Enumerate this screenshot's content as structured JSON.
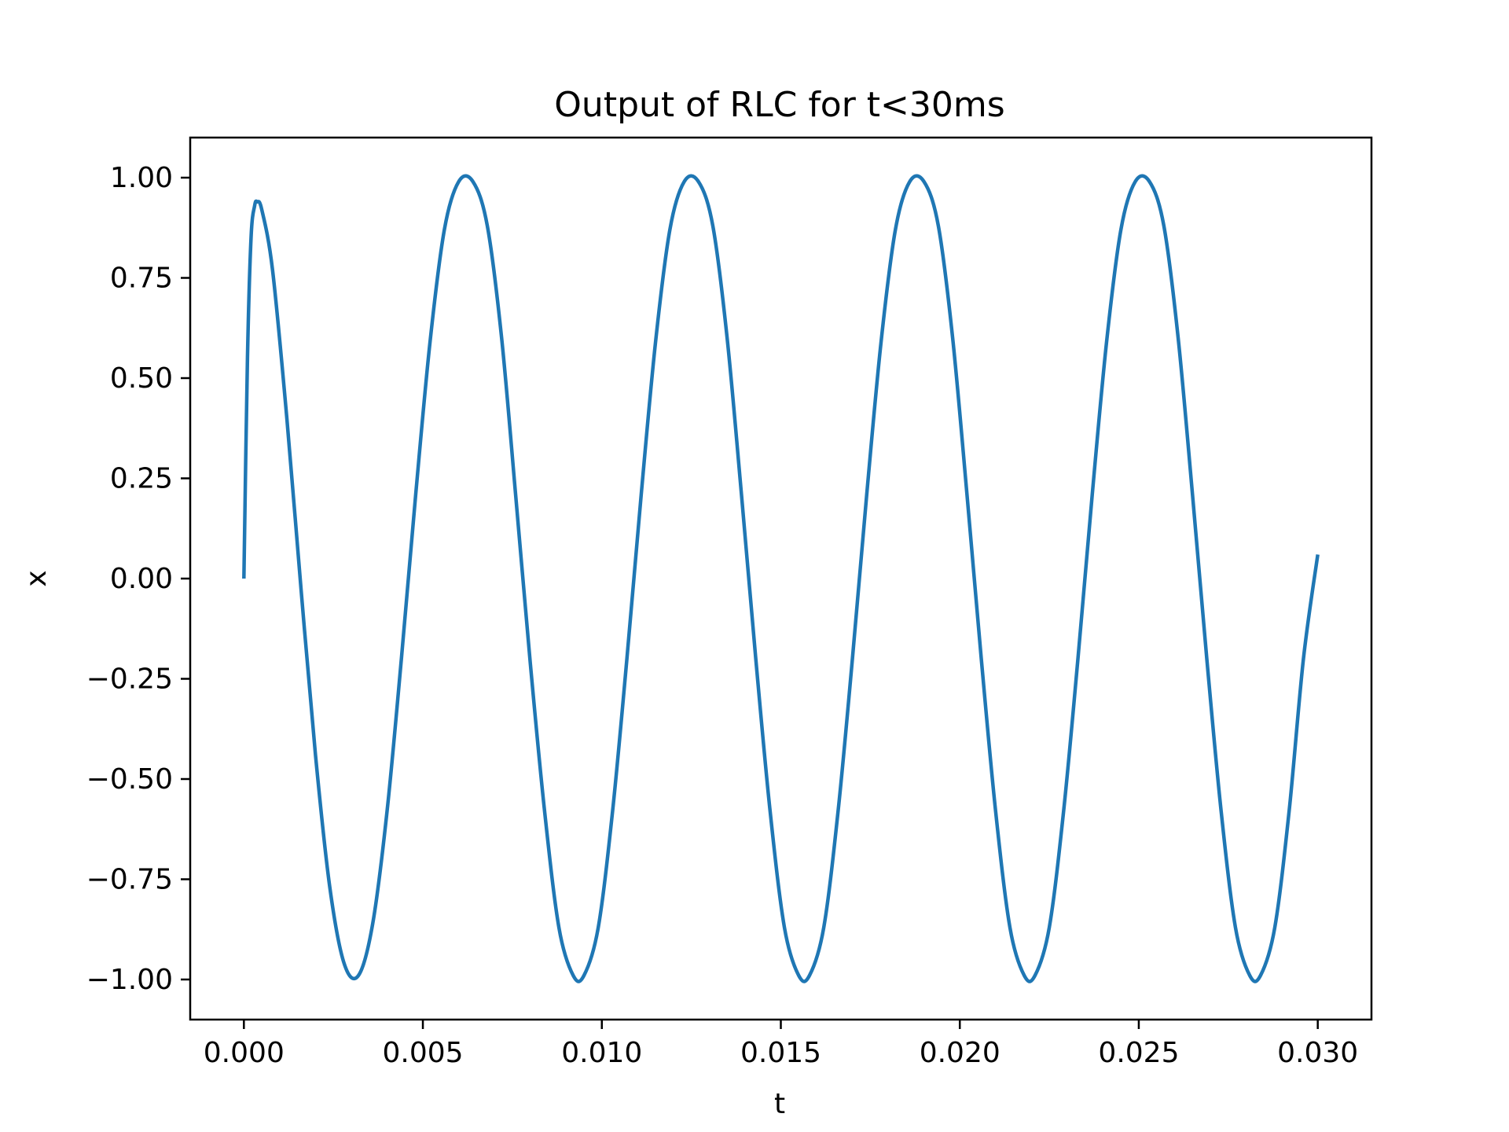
{
  "chart_data": {
    "type": "line",
    "title": "Output of RLC for t<30ms",
    "xlabel": "t",
    "ylabel": "x",
    "xlim": [
      -0.0015,
      0.0315
    ],
    "ylim": [
      -1.1,
      1.1
    ],
    "xticks": [
      0.0,
      0.005,
      0.01,
      0.015,
      0.02,
      0.025,
      0.03
    ],
    "xtick_labels": [
      "0.000",
      "0.005",
      "0.010",
      "0.015",
      "0.020",
      "0.025",
      "0.030"
    ],
    "yticks": [
      1.0,
      0.75,
      0.5,
      0.25,
      0.0,
      -0.25,
      -0.5,
      -0.75,
      -1.0
    ],
    "ytick_labels": [
      "1.00",
      "0.75",
      "0.50",
      "0.25",
      "0.00",
      "−0.25",
      "−0.50",
      "−0.75",
      "−1.00"
    ],
    "grid": false,
    "color": "#1f77b4",
    "series": [
      {
        "x": [
          0.0,
          0.0001,
          0.0002,
          0.0003,
          0.00037,
          0.0005,
          0.0008,
          0.0012,
          0.0016,
          0.002,
          0.0024,
          0.0028,
          0.0032,
          0.0036,
          0.004,
          0.0044,
          0.0048,
          0.0052,
          0.0056,
          0.006,
          0.0064,
          0.0068,
          0.0072,
          0.0076,
          0.008,
          0.0084,
          0.0088,
          0.0092,
          0.0095,
          0.0099,
          0.0103,
          0.0107,
          0.0111,
          0.0115,
          0.0119,
          0.0123,
          0.0127,
          0.0131,
          0.0135,
          0.0139,
          0.0143,
          0.0147,
          0.0151,
          0.0155,
          0.0158,
          0.0162,
          0.0166,
          0.017,
          0.0174,
          0.0178,
          0.0182,
          0.0186,
          0.019,
          0.0194,
          0.0198,
          0.0202,
          0.0206,
          0.021,
          0.0214,
          0.0218,
          0.0221,
          0.0225,
          0.0229,
          0.0233,
          0.0237,
          0.0241,
          0.0245,
          0.0249,
          0.0253,
          0.0257,
          0.0261,
          0.0265,
          0.0269,
          0.0273,
          0.0277,
          0.0281,
          0.0284,
          0.0288,
          0.0292,
          0.0296,
          0.03
        ],
        "y": [
          0.0,
          0.55,
          0.85,
          0.93,
          0.94,
          0.92,
          0.77,
          0.4,
          -0.03,
          -0.44,
          -0.77,
          -0.96,
          -0.99,
          -0.86,
          -0.58,
          -0.2,
          0.21,
          0.59,
          0.87,
          0.99,
          0.99,
          0.88,
          0.6,
          0.2,
          -0.21,
          -0.58,
          -0.87,
          -0.99,
          -0.99,
          -0.87,
          -0.58,
          -0.2,
          0.21,
          0.59,
          0.87,
          0.99,
          0.99,
          0.88,
          0.6,
          0.21,
          -0.2,
          -0.58,
          -0.87,
          -0.99,
          -0.99,
          -0.87,
          -0.58,
          -0.2,
          0.21,
          0.59,
          0.87,
          0.99,
          0.99,
          0.88,
          0.6,
          0.21,
          -0.2,
          -0.58,
          -0.87,
          -0.99,
          -0.99,
          -0.87,
          -0.58,
          -0.2,
          0.21,
          0.59,
          0.87,
          0.99,
          0.99,
          0.88,
          0.6,
          0.21,
          -0.2,
          -0.58,
          -0.87,
          -0.99,
          -0.99,
          -0.87,
          -0.58,
          -0.2,
          0.06
        ]
      }
    ]
  }
}
